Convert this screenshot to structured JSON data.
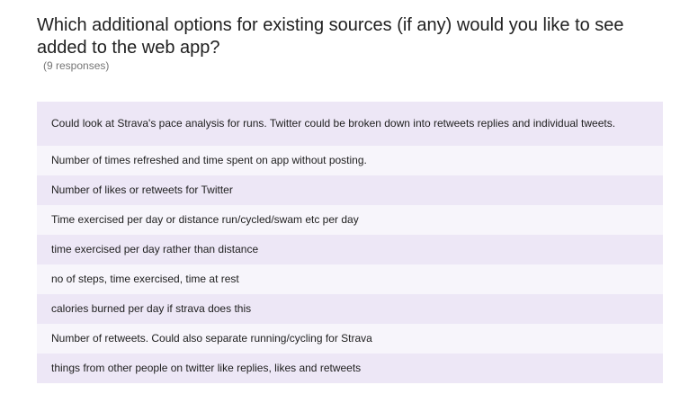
{
  "question": {
    "title": "Which additional options for existing sources (if any) would you like to see added to the web app?",
    "response_count": "(9 responses)"
  },
  "responses": [
    "Could look at Strava's pace analysis for runs. Twitter could be broken down into retweets replies and individual tweets.",
    "Number of times refreshed and time spent on app without posting.",
    "Number of likes or retweets for Twitter",
    "Time exercised per day or distance run/cycled/swam etc per day",
    "time exercised per day rather than distance",
    "no of steps, time exercised, time at rest",
    "calories burned per day if strava does this",
    "Number of retweets. Could also separate running/cycling for Strava",
    "things from other people on twitter like replies, likes and retweets"
  ],
  "colors": {
    "row_shaded": "#ede7f6",
    "row_light": "#f7f5fb",
    "text": "#212121",
    "muted_text": "#757575"
  }
}
